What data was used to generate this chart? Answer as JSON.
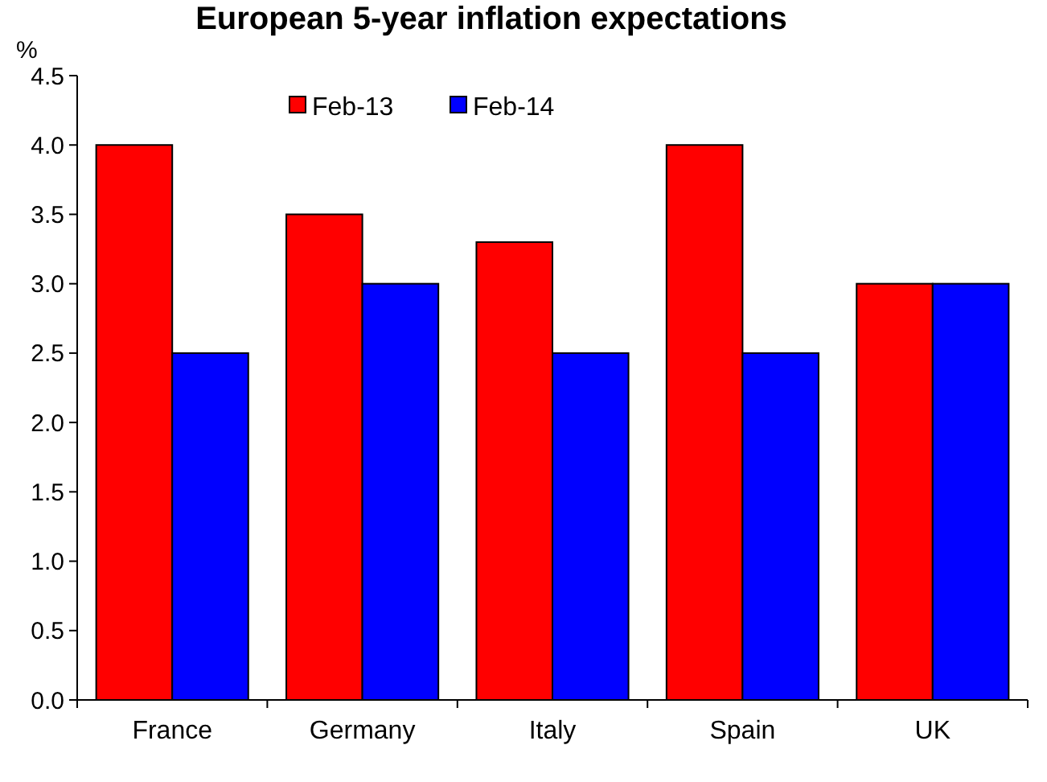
{
  "chart_data": {
    "type": "bar",
    "title": "European 5-year inflation expectations",
    "ylabel": "%",
    "categories": [
      "France",
      "Germany",
      "Italy",
      "Spain",
      "UK"
    ],
    "series": [
      {
        "name": "Feb-13",
        "color": "#ff0000",
        "values": [
          4.0,
          3.5,
          3.3,
          4.0,
          3.0
        ]
      },
      {
        "name": "Feb-14",
        "color": "#0000ff",
        "values": [
          2.5,
          3.0,
          2.5,
          2.5,
          3.0
        ]
      }
    ],
    "ylim": [
      0,
      4.5
    ],
    "yticks": [
      {
        "value": 0,
        "label": "0.0"
      },
      {
        "value": 0.5,
        "label": "0.5"
      },
      {
        "value": 1,
        "label": "1.0"
      },
      {
        "value": 1.5,
        "label": "1.5"
      },
      {
        "value": 2,
        "label": "2.0"
      },
      {
        "value": 2.5,
        "label": "2.5"
      },
      {
        "value": 3,
        "label": "3.0"
      },
      {
        "value": 3.5,
        "label": "3.5"
      },
      {
        "value": 4,
        "label": "4.0"
      },
      {
        "value": 4.5,
        "label": "4.5"
      }
    ],
    "grid": false,
    "legend": "top"
  }
}
